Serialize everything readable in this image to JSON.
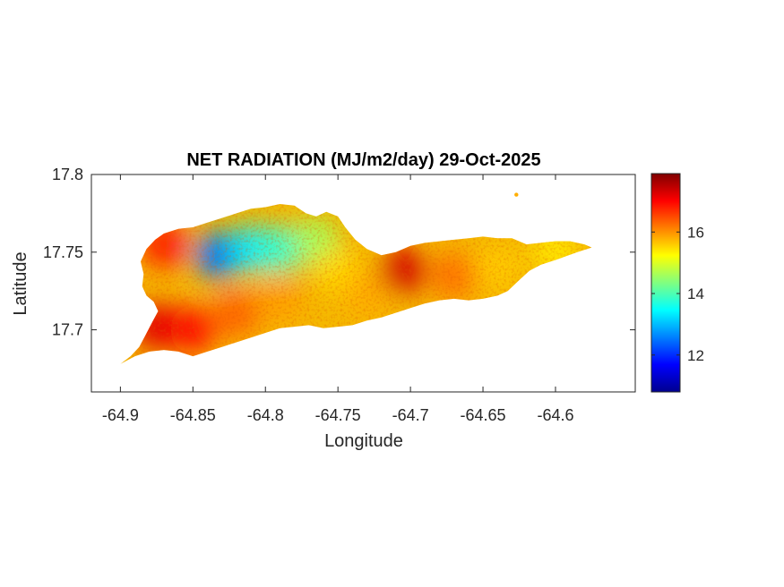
{
  "chart_data": {
    "type": "heatmap",
    "title": "NET RADIATION (MJ/m2/day) 29-Oct-2025",
    "xlabel": "Longitude",
    "ylabel": "Latitude",
    "xlim": [
      -64.92,
      -64.545
    ],
    "ylim": [
      17.66,
      17.8
    ],
    "xticks": [
      -64.9,
      -64.85,
      -64.8,
      -64.75,
      -64.7,
      -64.65,
      -64.6
    ],
    "xtick_labels": [
      "-64.9",
      "-64.85",
      "-64.8",
      "-64.75",
      "-64.7",
      "-64.65",
      "-64.6"
    ],
    "yticks": [
      17.7,
      17.75,
      17.8
    ],
    "ytick_labels": [
      "17.7",
      "17.75",
      "17.8"
    ],
    "colorbar": {
      "colormap": "jet",
      "range": [
        10.8,
        17.9
      ],
      "ticks": [
        12,
        14,
        16
      ],
      "tick_labels": [
        "12",
        "14",
        "16"
      ]
    },
    "grid": false,
    "island_outline": [
      [
        -64.9,
        17.678
      ],
      [
        -64.893,
        17.683
      ],
      [
        -64.887,
        17.689
      ],
      [
        -64.883,
        17.696
      ],
      [
        -64.878,
        17.705
      ],
      [
        -64.874,
        17.712
      ],
      [
        -64.877,
        17.718
      ],
      [
        -64.882,
        17.722
      ],
      [
        -64.885,
        17.728
      ],
      [
        -64.884,
        17.736
      ],
      [
        -64.886,
        17.744
      ],
      [
        -64.882,
        17.752
      ],
      [
        -64.876,
        17.758
      ],
      [
        -64.87,
        17.762
      ],
      [
        -64.86,
        17.765
      ],
      [
        -64.85,
        17.766
      ],
      [
        -64.84,
        17.769
      ],
      [
        -64.83,
        17.772
      ],
      [
        -64.82,
        17.775
      ],
      [
        -64.81,
        17.778
      ],
      [
        -64.8,
        17.779
      ],
      [
        -64.79,
        17.781
      ],
      [
        -64.78,
        17.78
      ],
      [
        -64.772,
        17.775
      ],
      [
        -64.765,
        17.773
      ],
      [
        -64.758,
        17.776
      ],
      [
        -64.75,
        17.773
      ],
      [
        -64.745,
        17.766
      ],
      [
        -64.738,
        17.758
      ],
      [
        -64.73,
        17.752
      ],
      [
        -64.72,
        17.748
      ],
      [
        -64.71,
        17.75
      ],
      [
        -64.7,
        17.754
      ],
      [
        -64.69,
        17.756
      ],
      [
        -64.68,
        17.757
      ],
      [
        -64.67,
        17.758
      ],
      [
        -64.66,
        17.759
      ],
      [
        -64.65,
        17.76
      ],
      [
        -64.64,
        17.759
      ],
      [
        -64.63,
        17.759
      ],
      [
        -64.62,
        17.755
      ],
      [
        -64.61,
        17.756
      ],
      [
        -64.6,
        17.757
      ],
      [
        -64.59,
        17.757
      ],
      [
        -64.58,
        17.755
      ],
      [
        -64.575,
        17.753
      ],
      [
        -64.585,
        17.75
      ],
      [
        -64.6,
        17.745
      ],
      [
        -64.61,
        17.742
      ],
      [
        -64.618,
        17.738
      ],
      [
        -64.625,
        17.732
      ],
      [
        -64.633,
        17.725
      ],
      [
        -64.64,
        17.722
      ],
      [
        -64.65,
        17.72
      ],
      [
        -64.66,
        17.719
      ],
      [
        -64.67,
        17.72
      ],
      [
        -64.68,
        17.719
      ],
      [
        -64.69,
        17.717
      ],
      [
        -64.7,
        17.714
      ],
      [
        -64.71,
        17.711
      ],
      [
        -64.72,
        17.708
      ],
      [
        -64.73,
        17.706
      ],
      [
        -64.74,
        17.703
      ],
      [
        -64.75,
        17.702
      ],
      [
        -64.76,
        17.701
      ],
      [
        -64.77,
        17.703
      ],
      [
        -64.78,
        17.702
      ],
      [
        -64.79,
        17.701
      ],
      [
        -64.8,
        17.698
      ],
      [
        -64.81,
        17.695
      ],
      [
        -64.82,
        17.692
      ],
      [
        -64.83,
        17.689
      ],
      [
        -64.84,
        17.686
      ],
      [
        -64.85,
        17.683
      ],
      [
        -64.86,
        17.686
      ],
      [
        -64.87,
        17.687
      ],
      [
        -64.88,
        17.686
      ],
      [
        -64.89,
        17.683
      ]
    ],
    "value_regions": [
      {
        "lon": -64.833,
        "lat": 17.748,
        "value": 12.5
      },
      {
        "lon": -64.81,
        "lat": 17.752,
        "value": 13.3
      },
      {
        "lon": -64.79,
        "lat": 17.752,
        "value": 13.8
      },
      {
        "lon": -64.765,
        "lat": 17.757,
        "value": 14.6
      },
      {
        "lon": -64.75,
        "lat": 17.738,
        "value": 15.5
      },
      {
        "lon": -64.73,
        "lat": 17.724,
        "value": 15.8
      },
      {
        "lon": -64.705,
        "lat": 17.738,
        "value": 17.3
      },
      {
        "lon": -64.67,
        "lat": 17.735,
        "value": 16.2
      },
      {
        "lon": -64.64,
        "lat": 17.74,
        "value": 15.6
      },
      {
        "lon": -64.6,
        "lat": 17.75,
        "value": 15.4
      },
      {
        "lon": -64.87,
        "lat": 17.755,
        "value": 16.8
      },
      {
        "lon": -64.875,
        "lat": 17.702,
        "value": 17.2
      },
      {
        "lon": -64.85,
        "lat": 17.7,
        "value": 16.9
      },
      {
        "lon": -64.82,
        "lat": 17.71,
        "value": 16.3
      },
      {
        "lon": -64.79,
        "lat": 17.72,
        "value": 15.9
      }
    ],
    "detached_point": {
      "lon": -64.627,
      "lat": 17.787,
      "value": 15.8
    }
  }
}
